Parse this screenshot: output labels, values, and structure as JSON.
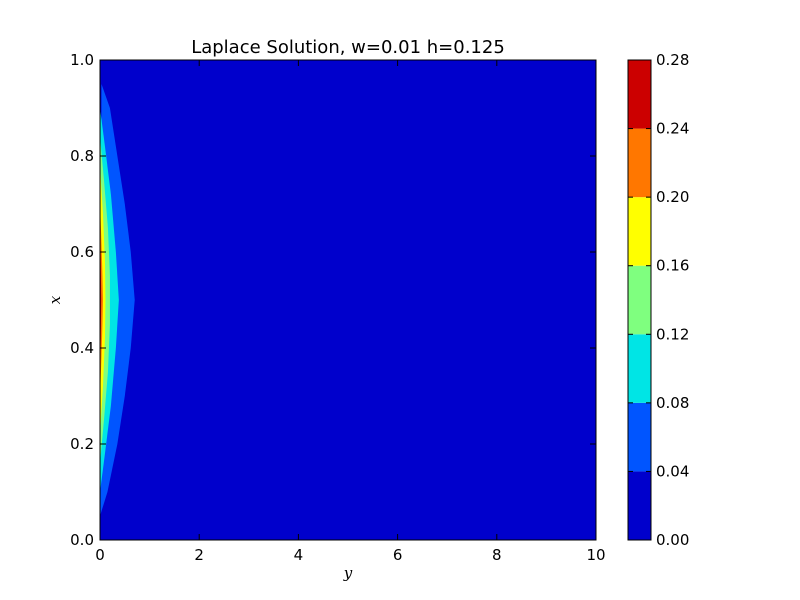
{
  "chart_data": {
    "type": "heatmap",
    "title": "Laplace Solution, w=0.01 h=0.125",
    "xlabel": "y",
    "ylabel": "x",
    "xlim": [
      0,
      10
    ],
    "ylim": [
      0,
      1
    ],
    "x_ticks": [
      0,
      2,
      4,
      6,
      8,
      10
    ],
    "y_ticks": [
      0.0,
      0.2,
      0.4,
      0.6,
      0.8,
      1.0
    ],
    "x_tick_labels": [
      "0",
      "2",
      "4",
      "6",
      "8",
      "10"
    ],
    "y_tick_labels": [
      "0.0",
      "0.2",
      "0.4",
      "0.6",
      "0.8",
      "1.0"
    ],
    "grid": false,
    "colorbar": {
      "levels": [
        0.0,
        0.04,
        0.08,
        0.12,
        0.16,
        0.2,
        0.24,
        0.28
      ],
      "tick_labels": [
        "0.00",
        "0.04",
        "0.08",
        "0.12",
        "0.16",
        "0.20",
        "0.24",
        "0.28"
      ],
      "colors": [
        "#0000cc",
        "#0055ff",
        "#00e5e5",
        "#7fff7f",
        "#ffff00",
        "#ff7700",
        "#cc0000"
      ]
    },
    "contour_level_boundaries": [
      {
        "level": 0.04,
        "points": [
          [
            0,
            0.05
          ],
          [
            0.15,
            0.1
          ],
          [
            0.35,
            0.2
          ],
          [
            0.5,
            0.3
          ],
          [
            0.62,
            0.4
          ],
          [
            0.7,
            0.5
          ],
          [
            0.62,
            0.6
          ],
          [
            0.5,
            0.7
          ],
          [
            0.35,
            0.8
          ],
          [
            0.2,
            0.9
          ],
          [
            0.03,
            0.95
          ]
        ]
      },
      {
        "level": 0.08,
        "points": [
          [
            0,
            0.1
          ],
          [
            0.1,
            0.18
          ],
          [
            0.22,
            0.28
          ],
          [
            0.32,
            0.4
          ],
          [
            0.38,
            0.5
          ],
          [
            0.32,
            0.6
          ],
          [
            0.22,
            0.72
          ],
          [
            0.1,
            0.82
          ],
          [
            0,
            0.9
          ]
        ]
      },
      {
        "level": 0.12,
        "points": [
          [
            0,
            0.16
          ],
          [
            0.08,
            0.25
          ],
          [
            0.16,
            0.35
          ],
          [
            0.2,
            0.45
          ],
          [
            0.2,
            0.55
          ],
          [
            0.16,
            0.65
          ],
          [
            0.08,
            0.75
          ],
          [
            0,
            0.84
          ]
        ]
      },
      {
        "level": 0.16,
        "points": [
          [
            0,
            0.22
          ],
          [
            0.06,
            0.32
          ],
          [
            0.1,
            0.42
          ],
          [
            0.11,
            0.5
          ],
          [
            0.1,
            0.58
          ],
          [
            0.06,
            0.68
          ],
          [
            0,
            0.78
          ]
        ]
      },
      {
        "level": 0.2,
        "points": [
          [
            0,
            0.3
          ],
          [
            0.03,
            0.38
          ],
          [
            0.05,
            0.45
          ],
          [
            0.06,
            0.5
          ],
          [
            0.05,
            0.55
          ],
          [
            0.03,
            0.62
          ],
          [
            0,
            0.7
          ]
        ]
      },
      {
        "level": 0.24,
        "points": [
          [
            0,
            0.35
          ],
          [
            0.015,
            0.42
          ],
          [
            0.025,
            0.5
          ],
          [
            0.015,
            0.58
          ],
          [
            0,
            0.65
          ]
        ]
      }
    ]
  }
}
